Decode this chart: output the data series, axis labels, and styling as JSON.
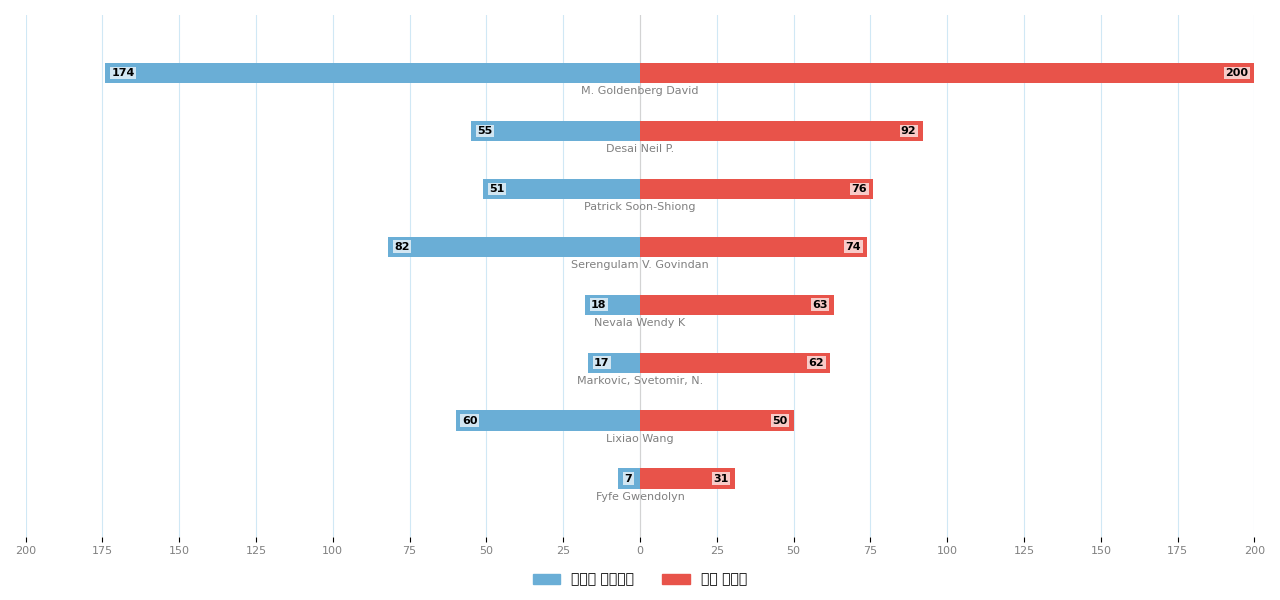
{
  "citations": [
    174,
    55,
    51,
    82,
    18,
    17,
    60,
    7
  ],
  "patents": [
    200,
    92,
    76,
    74,
    63,
    62,
    50,
    31
  ],
  "names": [
    "M. Goldenberg David",
    "Desai Neil P.",
    "Patrick Soon-Shiong",
    "Serengulam V. Govindan",
    "Nevala Wendy K",
    "Markovic, Svetomir, N.",
    "Lixiao Wang",
    "Fyfe Gwendolyn"
  ],
  "bar_height": 0.35,
  "citation_color": "#6aaed6",
  "patent_color": "#e8534a",
  "xlim": 200,
  "legend_citation_label": "심사관 피인용수",
  "legend_patent_label": "공개 특허수",
  "background_color": "#ffffff",
  "grid_color": "#d0e8f5",
  "label_fontsize": 8,
  "name_fontsize": 8
}
